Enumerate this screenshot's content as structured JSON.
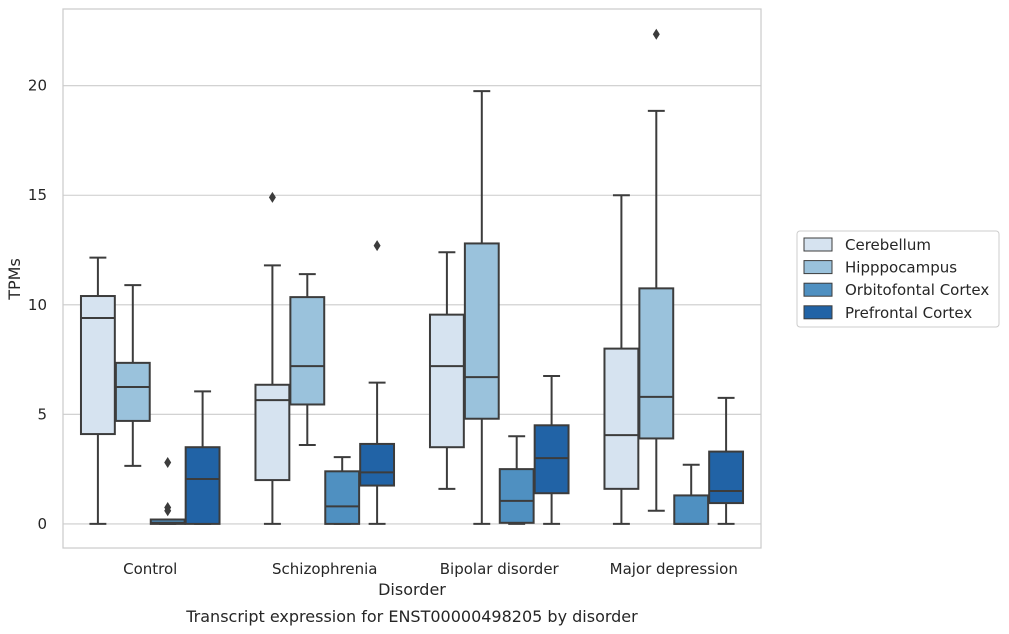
{
  "chart_data": {
    "type": "box",
    "caption": "Transcript expression for ENST00000498205 by disorder",
    "xlabel": "Disorder",
    "ylabel": "TPMs",
    "ylim": [
      -1.1,
      23.5
    ],
    "yticks": [
      0,
      5,
      10,
      15,
      20
    ],
    "grid": "horizontal",
    "legend_position": "right",
    "categories": [
      "Control",
      "Schizophrenia",
      "Bipolar disorder",
      "Major depression"
    ],
    "series": [
      {
        "name": "Cerebellum",
        "color": "#d6e3f0",
        "boxes": [
          {
            "whislo": 0.0,
            "q1": 4.1,
            "med": 9.4,
            "q3": 10.4,
            "whishi": 12.15,
            "fliers": []
          },
          {
            "whislo": 0.0,
            "q1": 2.0,
            "med": 5.65,
            "q3": 6.35,
            "whishi": 11.8,
            "fliers": [
              14.9
            ]
          },
          {
            "whislo": 1.6,
            "q1": 3.5,
            "med": 7.2,
            "q3": 9.55,
            "whishi": 12.4,
            "fliers": []
          },
          {
            "whislo": 0.0,
            "q1": 1.6,
            "med": 4.05,
            "q3": 8.0,
            "whishi": 15.0,
            "fliers": []
          }
        ]
      },
      {
        "name": "Hipppocampus",
        "color": "#9ac2dc",
        "boxes": [
          {
            "whislo": 2.65,
            "q1": 4.7,
            "med": 6.25,
            "q3": 7.35,
            "whishi": 10.9,
            "fliers": []
          },
          {
            "whislo": 3.6,
            "q1": 5.45,
            "med": 7.2,
            "q3": 10.35,
            "whishi": 11.4,
            "fliers": []
          },
          {
            "whislo": 0.0,
            "q1": 4.8,
            "med": 6.7,
            "q3": 12.8,
            "whishi": 19.75,
            "fliers": []
          },
          {
            "whislo": 0.6,
            "q1": 3.9,
            "med": 5.8,
            "q3": 10.75,
            "whishi": 18.85,
            "fliers": [
              22.35
            ]
          }
        ]
      },
      {
        "name": "Orbitofontal Cortex",
        "color": "#4f90c1",
        "boxes": [
          {
            "whislo": 0.0,
            "q1": 0.0,
            "med": 0.05,
            "q3": 0.2,
            "whishi": 0.2,
            "fliers": [
              0.6,
              0.75,
              2.8
            ]
          },
          {
            "whislo": 0.0,
            "q1": 0.0,
            "med": 0.8,
            "q3": 2.4,
            "whishi": 3.05,
            "fliers": []
          },
          {
            "whislo": 0.0,
            "q1": 0.05,
            "med": 1.05,
            "q3": 2.5,
            "whishi": 4.0,
            "fliers": []
          },
          {
            "whislo": 0.0,
            "q1": 0.0,
            "med": 0.0,
            "q3": 1.3,
            "whishi": 2.7,
            "fliers": []
          }
        ]
      },
      {
        "name": "Prefrontal Cortex",
        "color": "#2163a6",
        "boxes": [
          {
            "whislo": 0.0,
            "q1": 0.0,
            "med": 2.05,
            "q3": 3.5,
            "whishi": 6.05,
            "fliers": []
          },
          {
            "whislo": 0.0,
            "q1": 1.75,
            "med": 2.35,
            "q3": 3.65,
            "whishi": 6.45,
            "fliers": [
              12.7
            ]
          },
          {
            "whislo": 0.0,
            "q1": 1.4,
            "med": 3.0,
            "q3": 4.5,
            "whishi": 6.75,
            "fliers": []
          },
          {
            "whislo": 0.0,
            "q1": 0.95,
            "med": 1.5,
            "q3": 3.3,
            "whishi": 5.75,
            "fliers": []
          }
        ]
      }
    ]
  }
}
